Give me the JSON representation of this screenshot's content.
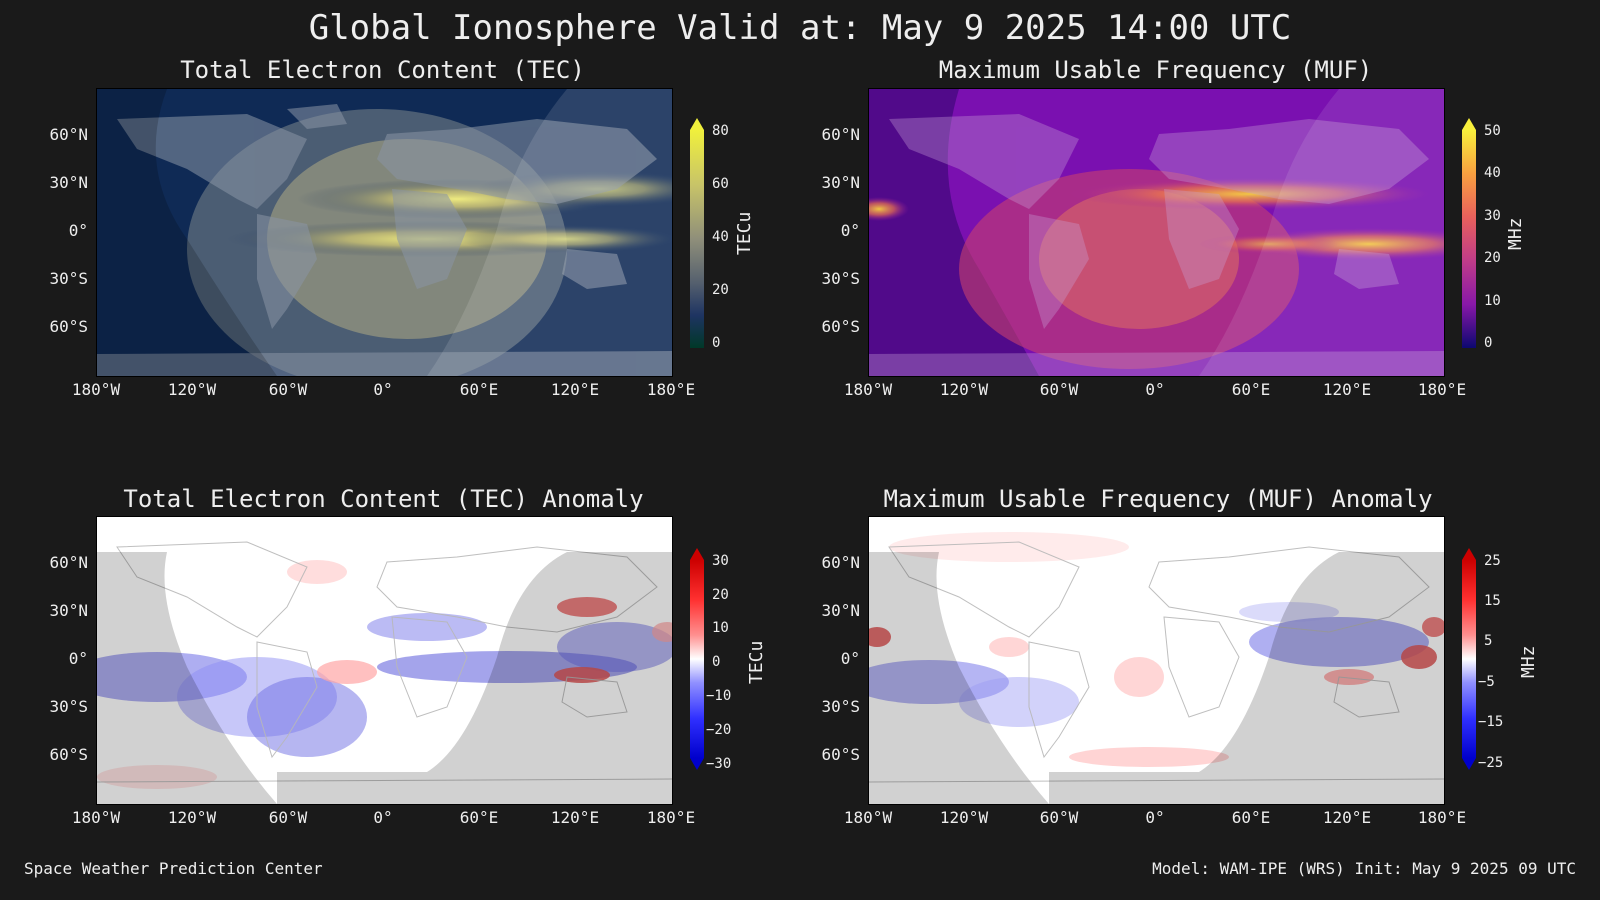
{
  "title": "Global Ionosphere Valid at: May 9 2025 14:00 UTC",
  "footer": {
    "left": "Space Weather Prediction Center",
    "right": "Model: WAM-IPE (WRS) Init: May 9 2025 09 UTC"
  },
  "lat_ticks": [
    "60°N",
    "30°N",
    "0°",
    "30°S",
    "60°S"
  ],
  "lon_ticks": [
    "180°W",
    "120°W",
    "60°W",
    "0°",
    "60°E",
    "120°E",
    "180°E"
  ],
  "panels": [
    {
      "id": "tec",
      "title": "Total Electron Content (TEC)",
      "colorbar": {
        "label": "TECu",
        "ticks": [
          "80",
          "60",
          "40",
          "20",
          "0"
        ],
        "colors": [
          "#f0f03c",
          "#c8c468",
          "#8f8f7a",
          "#55606e",
          "#2a3c5c",
          "#0a1e4a",
          "#003020"
        ]
      },
      "ocean_color": "#0f2a55"
    },
    {
      "id": "muf",
      "title": "Maximum Usable Frequency (MUF)",
      "colorbar": {
        "label": "MHz",
        "ticks": [
          "50",
          "40",
          "30",
          "20",
          "10",
          "0"
        ],
        "colors": [
          "#f8f03c",
          "#f8a040",
          "#e8605c",
          "#c03c88",
          "#8818a8",
          "#4808a0",
          "#0c0870"
        ]
      },
      "ocean_color": "#6a10a8"
    },
    {
      "id": "tec-anomaly",
      "title": "Total Electron Content (TEC) Anomaly",
      "colorbar": {
        "label": "TECu",
        "ticks": [
          "30",
          "20",
          "10",
          "0",
          "−10",
          "−20",
          "−30"
        ],
        "colors": [
          "#cc0000",
          "#ff3030",
          "#ff9090",
          "#ffffff",
          "#9090ff",
          "#3030ff",
          "#0000cc"
        ]
      },
      "ocean_color": "#ffffff"
    },
    {
      "id": "muf-anomaly",
      "title": "Maximum Usable Frequency (MUF) Anomaly",
      "colorbar": {
        "label": "MHz",
        "ticks": [
          "25",
          "15",
          "5",
          "−5",
          "−15",
          "−25"
        ],
        "colors": [
          "#cc0000",
          "#ff3030",
          "#ff9090",
          "#ffffff",
          "#9090ff",
          "#3030ff",
          "#0000cc"
        ]
      },
      "ocean_color": "#ffffff"
    }
  ]
}
